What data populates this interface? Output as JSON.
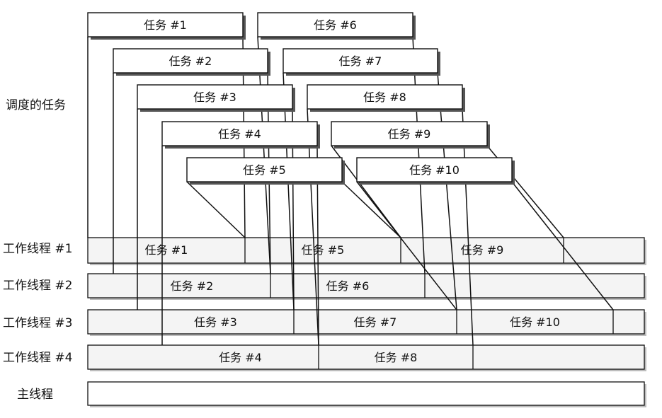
{
  "left_labels": {
    "scheduled": "调度的任务",
    "worker_1": "工作线程 #1",
    "worker_2": "工作线程 #2",
    "worker_3": "工作线程 #3",
    "worker_4": "工作线程 #4",
    "main_thread": "主线程"
  },
  "scheduled_tasks": [
    {
      "id": 1,
      "label": "任务 #1"
    },
    {
      "id": 2,
      "label": "任务 #2"
    },
    {
      "id": 3,
      "label": "任务 #3"
    },
    {
      "id": 4,
      "label": "任务 #4"
    },
    {
      "id": 5,
      "label": "任务 #5"
    },
    {
      "id": 6,
      "label": "任务 #6"
    },
    {
      "id": 7,
      "label": "任务 #7"
    },
    {
      "id": 8,
      "label": "任务 #8"
    },
    {
      "id": 9,
      "label": "任务 #9"
    },
    {
      "id": 10,
      "label": "任务 #10"
    }
  ],
  "worker_assignments": [
    {
      "thread": 1,
      "tasks": [
        1,
        5,
        9
      ]
    },
    {
      "thread": 2,
      "tasks": [
        2,
        6
      ]
    },
    {
      "thread": 3,
      "tasks": [
        3,
        7,
        10
      ]
    },
    {
      "thread": 4,
      "tasks": [
        4,
        8
      ]
    }
  ],
  "colors": {
    "line": "#111111",
    "box_fill": "#ffffff",
    "shadow": "#555555",
    "row_fill": "#f4f4f4"
  }
}
